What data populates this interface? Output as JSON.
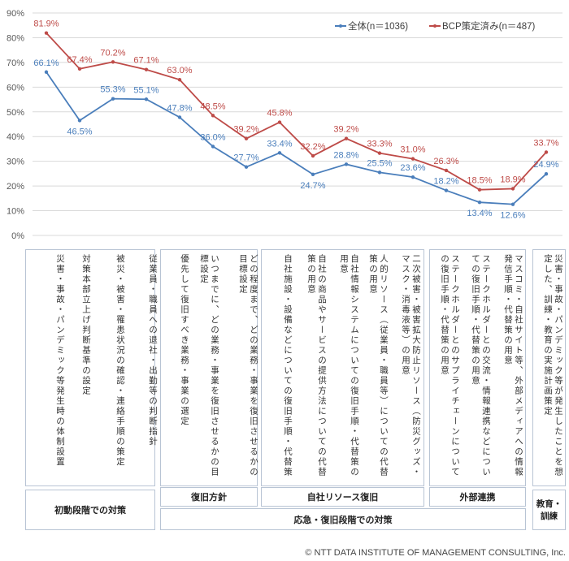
{
  "chart_data": {
    "type": "line",
    "ylim": [
      0,
      90
    ],
    "yticks": [
      "0%",
      "10%",
      "20%",
      "30%",
      "40%",
      "50%",
      "60%",
      "70%",
      "80%",
      "90%"
    ],
    "grid": true,
    "legend_placement": "top-right",
    "categories": [
      "災害・事故・パンデミック等発生時の体制設置",
      "対策本部立上げ判断基準の設定",
      "被災・被害・罹患状況の確認・連絡手順の策定",
      "従業員・職員への退社・出勤等の判断指針",
      "優先して復旧すべき業務・事業の選定",
      "いつまでに、どの業務・事業を復旧させるかの目標設定",
      "どの程度まで、どの業務・事業を復旧させるかの目標設定",
      "自社施設・設備などについての復旧手順・代替策",
      "自社の商品やサービスの提供方法についての代替策の用意",
      "自社情報システムについての復旧手順・代替策の用意",
      "人的リソース（従業員・職員等）についての代替策の用意",
      "二次被害・被害拡大防止リソース（防災グッズ・マスク・消毒液等）の用意",
      "ステークホルダーとのサプライチェーンについての復旧手順・代替策の用意",
      "ステークホルダーとの交流・情報連携などについての復旧手順・代替策の用意",
      "マスコミ・自社サイト等、外部メディアへの情報発信手順・代替策の用意",
      "災害・事故・パンデミック等が発生したことを想定した、訓練・教育の実施計画策定"
    ],
    "series": [
      {
        "name": "全体(n＝1036)",
        "color": "#4a7ebb",
        "values": [
          66.1,
          46.5,
          55.3,
          55.1,
          47.8,
          36.0,
          27.7,
          33.4,
          24.7,
          28.8,
          25.5,
          23.6,
          18.2,
          13.4,
          12.6,
          24.9
        ]
      },
      {
        "name": "BCP策定済み(n＝487)",
        "color": "#be4b48",
        "values": [
          81.9,
          67.4,
          70.2,
          67.1,
          63.0,
          48.5,
          39.2,
          45.8,
          32.2,
          39.2,
          33.3,
          31.0,
          26.3,
          18.5,
          18.9,
          33.7
        ]
      }
    ]
  },
  "groups": {
    "initial": "初動段階での対策",
    "policy": "復旧方針",
    "resources": "自社リソース復旧",
    "external": "外部連携",
    "emergency": "応急・復旧段階での対策",
    "training": "教育・訓練"
  },
  "footer": "© NTT DATA INSTITUTE OF MANAGEMENT CONSULTING, Inc."
}
